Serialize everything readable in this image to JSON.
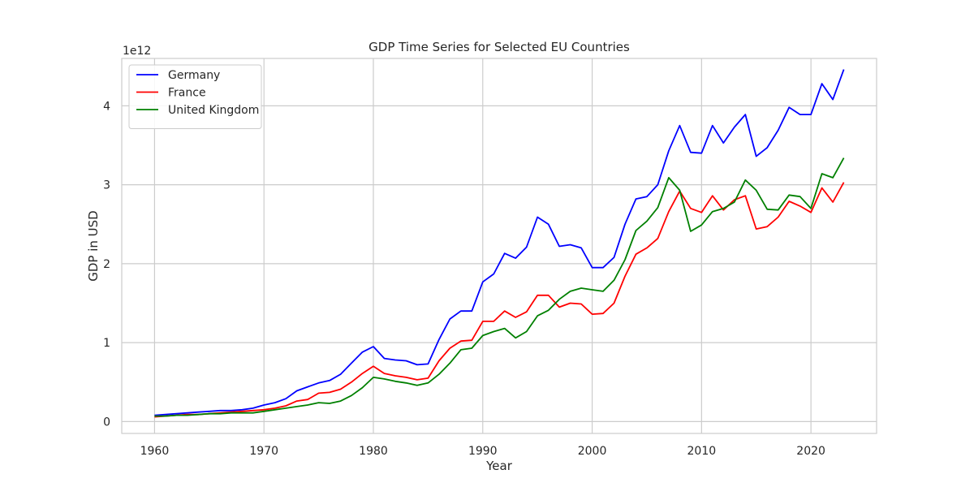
{
  "chart_data": {
    "type": "line",
    "title": "GDP Time Series for Selected EU Countries",
    "xlabel": "Year",
    "ylabel": "GDP in USD",
    "y_offset_text": "1e12",
    "xlim": [
      1957,
      2026
    ],
    "ylim": [
      -0.15,
      4.6
    ],
    "y_unit_multiplier": 1000000000000.0,
    "xticks": [
      1960,
      1970,
      1980,
      1990,
      2000,
      2010,
      2020
    ],
    "yticks": [
      0,
      1,
      2,
      3,
      4
    ],
    "grid": true,
    "legend_position": "top-left",
    "x": [
      1960,
      1961,
      1962,
      1963,
      1964,
      1965,
      1966,
      1967,
      1968,
      1969,
      1970,
      1971,
      1972,
      1973,
      1974,
      1975,
      1976,
      1977,
      1978,
      1979,
      1980,
      1981,
      1982,
      1983,
      1984,
      1985,
      1986,
      1987,
      1988,
      1989,
      1990,
      1991,
      1992,
      1993,
      1994,
      1995,
      1996,
      1997,
      1998,
      1999,
      2000,
      2001,
      2002,
      2003,
      2004,
      2005,
      2006,
      2007,
      2008,
      2009,
      2010,
      2011,
      2012,
      2013,
      2014,
      2015,
      2016,
      2017,
      2018,
      2019,
      2020,
      2021,
      2022,
      2023
    ],
    "series": [
      {
        "name": "Germany",
        "color": "#0000ff",
        "values": [
          0.08,
          0.09,
          0.1,
          0.11,
          0.12,
          0.13,
          0.14,
          0.14,
          0.15,
          0.17,
          0.21,
          0.24,
          0.29,
          0.39,
          0.44,
          0.49,
          0.52,
          0.6,
          0.74,
          0.88,
          0.95,
          0.8,
          0.78,
          0.77,
          0.72,
          0.73,
          1.04,
          1.3,
          1.4,
          1.4,
          1.77,
          1.87,
          2.13,
          2.07,
          2.21,
          2.59,
          2.5,
          2.22,
          2.24,
          2.2,
          1.95,
          1.95,
          2.08,
          2.5,
          2.82,
          2.85,
          3.0,
          3.43,
          3.75,
          3.41,
          3.4,
          3.75,
          3.53,
          3.73,
          3.89,
          3.36,
          3.47,
          3.69,
          3.98,
          3.89,
          3.89,
          4.28,
          4.08,
          4.46
        ]
      },
      {
        "name": "France",
        "color": "#ff0000",
        "values": [
          0.06,
          0.07,
          0.08,
          0.09,
          0.09,
          0.1,
          0.11,
          0.12,
          0.13,
          0.14,
          0.15,
          0.17,
          0.2,
          0.26,
          0.28,
          0.36,
          0.37,
          0.41,
          0.5,
          0.61,
          0.7,
          0.61,
          0.58,
          0.56,
          0.53,
          0.55,
          0.77,
          0.93,
          1.02,
          1.03,
          1.27,
          1.27,
          1.4,
          1.32,
          1.39,
          1.6,
          1.6,
          1.45,
          1.5,
          1.49,
          1.36,
          1.37,
          1.5,
          1.84,
          2.12,
          2.2,
          2.32,
          2.66,
          2.92,
          2.7,
          2.65,
          2.86,
          2.68,
          2.81,
          2.86,
          2.44,
          2.47,
          2.59,
          2.79,
          2.73,
          2.65,
          2.96,
          2.78,
          3.03
        ]
      },
      {
        "name": "United Kingdom",
        "color": "#008000",
        "values": [
          0.07,
          0.07,
          0.08,
          0.08,
          0.09,
          0.1,
          0.1,
          0.11,
          0.11,
          0.11,
          0.13,
          0.15,
          0.17,
          0.19,
          0.21,
          0.24,
          0.23,
          0.26,
          0.33,
          0.43,
          0.56,
          0.54,
          0.51,
          0.49,
          0.46,
          0.49,
          0.6,
          0.74,
          0.91,
          0.93,
          1.09,
          1.14,
          1.18,
          1.06,
          1.14,
          1.34,
          1.41,
          1.55,
          1.65,
          1.69,
          1.67,
          1.65,
          1.79,
          2.05,
          2.42,
          2.54,
          2.71,
          3.09,
          2.93,
          2.41,
          2.49,
          2.66,
          2.7,
          2.78,
          3.06,
          2.93,
          2.69,
          2.68,
          2.87,
          2.85,
          2.7,
          3.14,
          3.09,
          3.34
        ]
      }
    ]
  }
}
